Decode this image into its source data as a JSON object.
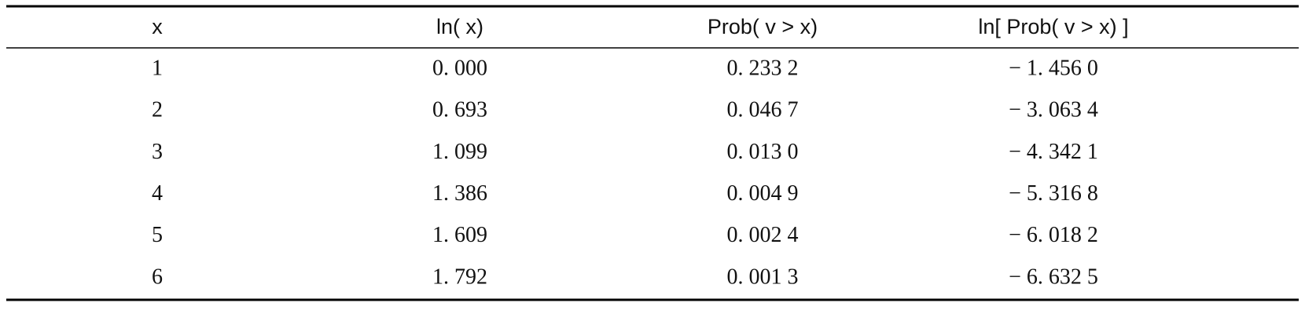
{
  "table": {
    "header": [
      "x",
      "ln( x)",
      "Prob( v > x)",
      "ln[ Prob( v > x) ]"
    ],
    "rows": [
      [
        "1",
        "0. 000",
        "0. 233 2",
        "− 1. 456 0"
      ],
      [
        "2",
        "0. 693",
        "0. 046 7",
        "− 3. 063 4"
      ],
      [
        "3",
        "1. 099",
        "0. 013 0",
        "− 4. 342 1"
      ],
      [
        "4",
        "1. 386",
        "0. 004 9",
        "− 5. 316 8"
      ],
      [
        "5",
        "1. 609",
        "0. 002 4",
        "− 6. 018 2"
      ],
      [
        "6",
        "1. 792",
        "0. 001 3",
        "− 6. 632 5"
      ]
    ]
  }
}
